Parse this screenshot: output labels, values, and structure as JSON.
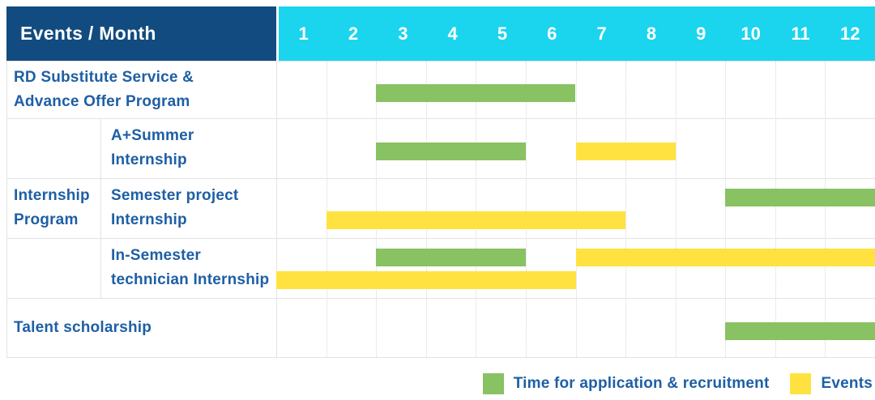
{
  "header": {
    "title": "Events / Month",
    "months": [
      "1",
      "2",
      "3",
      "4",
      "5",
      "6",
      "7",
      "8",
      "9",
      "10",
      "11",
      "12"
    ]
  },
  "colors": {
    "header_bg": "#124b7f",
    "months_bg": "#1bd4ee",
    "header_text": "#ffffff",
    "label_text": "#1e5fa4",
    "application": "#88c262",
    "event": "#ffe23f",
    "grid_line": "#e3e3e3"
  },
  "group": {
    "label_lines": [
      "Internship",
      "Program"
    ]
  },
  "legend": {
    "items": [
      {
        "kind": "application",
        "label": "Time for application & recruitment"
      },
      {
        "kind": "event",
        "label": "Events"
      }
    ]
  },
  "chart_data": {
    "type": "gantt",
    "title": "Events / Month",
    "x_unit": "month",
    "x_ticks": [
      1,
      2,
      3,
      4,
      5,
      6,
      7,
      8,
      9,
      10,
      11,
      12
    ],
    "x_range": [
      1,
      12
    ],
    "legend": {
      "application": "Time for application & recruitment",
      "event": "Events"
    },
    "rows": [
      {
        "name": "RD Substitute Service & Advance Offer Program",
        "group": null,
        "label_lines": [
          "RD Substitute Service &",
          "Advance Offer Program"
        ],
        "bars": [
          {
            "kind": "application",
            "start_month": 3,
            "end_month": 6,
            "lane": "center"
          }
        ]
      },
      {
        "name": "A+Summer Internship",
        "group": "Internship Program",
        "label_lines": [
          "A+Summer",
          "Internship"
        ],
        "bars": [
          {
            "kind": "application",
            "start_month": 3,
            "end_month": 5,
            "lane": "center"
          },
          {
            "kind": "event",
            "start_month": 7,
            "end_month": 8,
            "lane": "center"
          }
        ]
      },
      {
        "name": "Semester project Internship",
        "group": "Internship Program",
        "label_lines": [
          "Semester project",
          "Internship"
        ],
        "bars": [
          {
            "kind": "application",
            "start_month": 10,
            "end_month": 12,
            "lane": "top"
          },
          {
            "kind": "event",
            "start_month": 2,
            "end_month": 7,
            "lane": "bottom"
          }
        ]
      },
      {
        "name": "In-Semester technician Internship",
        "group": "Internship Program",
        "label_lines": [
          "In-Semester",
          "technician Internship"
        ],
        "bars": [
          {
            "kind": "application",
            "start_month": 3,
            "end_month": 5,
            "lane": "top"
          },
          {
            "kind": "event",
            "start_month": 7,
            "end_month": 12,
            "lane": "top"
          },
          {
            "kind": "event",
            "start_month": 1,
            "end_month": 6,
            "lane": "bottom"
          }
        ]
      },
      {
        "name": "Talent scholarship",
        "group": null,
        "label_lines": [
          "Talent scholarship"
        ],
        "bars": [
          {
            "kind": "application",
            "start_month": 10,
            "end_month": 12,
            "lane": "center"
          }
        ]
      }
    ]
  }
}
